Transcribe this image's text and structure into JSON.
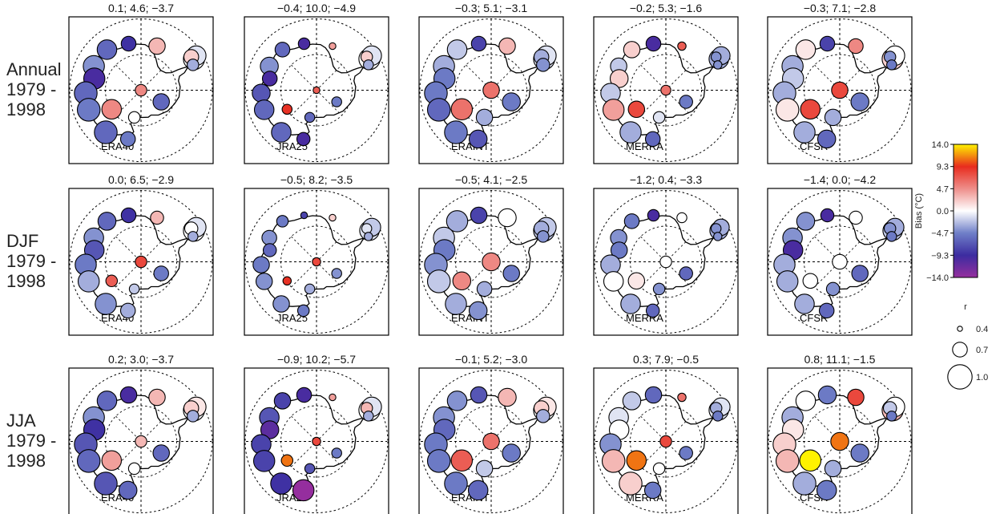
{
  "chart_data": {
    "type": "scatter",
    "description_type": "polar station map small multiples",
    "rows": [
      {
        "label_lines": [
          "Annual",
          "1979 -",
          "1998"
        ]
      },
      {
        "label_lines": [
          "DJF",
          "1979 -",
          "1998"
        ]
      },
      {
        "label_lines": [
          "JJA",
          "1979 -",
          "1998"
        ]
      }
    ],
    "models": [
      "ERA40",
      "JRA25",
      "ERAINT",
      "MERRA",
      "CFSR"
    ],
    "panel_titles": [
      [
        "0.1; 4.6; −3.7",
        "−0.4; 10.0; −4.9",
        "−0.3; 5.1; −3.1",
        "−0.2; 5.3; −1.6",
        "−0.3; 7.1; −2.8"
      ],
      [
        "0.0; 6.5; −2.9",
        "−0.5; 8.2; −3.5",
        "−0.5; 4.1; −2.5",
        "−1.2; 0.4; −3.3",
        "−1.4; 0.0; −4.2"
      ],
      [
        "0.2; 3.0; −3.7",
        "−0.9; 10.2; −5.7",
        "−0.1; 5.2; −3.0",
        "0.3; 7.9; −0.5",
        "0.8; 11.1; −1.5"
      ]
    ],
    "station_lat_lon": [
      [
        -64.0,
        -59.5
      ],
      [
        -62.5,
        -58.0
      ],
      [
        -64.5,
        -56.5
      ],
      [
        -65.5,
        -64.0
      ],
      [
        -70.0,
        -20.0
      ],
      [
        -69.5,
        15.0
      ],
      [
        -67.5,
        40.0
      ],
      [
        -67.5,
        63.0
      ],
      [
        -69.5,
        76.0
      ],
      [
        -66.5,
        93.0
      ],
      [
        -66.3,
        110.5
      ],
      [
        -66.7,
        140.0
      ],
      [
        -75.0,
        123.0
      ],
      [
        -90.0,
        0.0
      ],
      [
        -78.0,
        166.0
      ],
      [
        -80.0,
        -120.0
      ],
      [
        -68.5,
        165.0
      ]
    ],
    "bias_values": [
      [
        [
          0.0,
          -1.0,
          2.0,
          -3.0,
          3.0,
          -9.0,
          -6.0,
          -4.0,
          -10.0,
          -6.0,
          -5.0,
          -6.0,
          5.0,
          5.0,
          0.0,
          -6.0,
          -5.0
        ],
        [
          0.0,
          -1.0,
          2.0,
          -3.0,
          4.0,
          -10.0,
          -6.0,
          -4.0,
          -10.0,
          -7.0,
          -6.0,
          -6.0,
          9.0,
          7.0,
          -6.0,
          -5.0,
          -10.0
        ],
        [
          -1.0,
          -1.0,
          -3.0,
          -4.0,
          3.0,
          -8.0,
          -2.0,
          -3.0,
          -5.0,
          -5.0,
          -6.0,
          -5.0,
          6.0,
          6.0,
          -3.0,
          -5.0,
          -7.0
        ],
        [
          -3.0,
          -3.0,
          -4.0,
          -4.0,
          7.0,
          -10.0,
          2.0,
          -2.0,
          2.0,
          -2.0,
          4.0,
          -3.0,
          8.0,
          6.0,
          -1.0,
          -5.0,
          -6.0
        ],
        [
          2.0,
          0.0,
          -4.0,
          -5.0,
          5.0,
          -8.0,
          1.0,
          -3.0,
          -2.0,
          -3.0,
          1.0,
          -3.0,
          8.0,
          8.0,
          -3.0,
          -5.0,
          -6.0
        ]
      ],
      [
        [
          0.0,
          -1.0,
          0.0,
          -3.0,
          3.0,
          -9.0,
          -6.0,
          -4.0,
          -7.0,
          -5.0,
          -3.0,
          -4.0,
          7.0,
          8.0,
          -2.0,
          -5.0,
          -3.0
        ],
        [
          -1.0,
          -2.0,
          -1.0,
          -3.0,
          2.0,
          -8.0,
          -5.0,
          -4.0,
          -6.0,
          -5.0,
          -4.0,
          -4.0,
          9.0,
          8.0,
          -3.0,
          -4.0,
          -5.0
        ],
        [
          -2.0,
          -2.0,
          -3.0,
          -4.0,
          0.0,
          -8.0,
          -3.0,
          -2.0,
          -5.0,
          -4.0,
          -2.0,
          -3.0,
          5.0,
          5.0,
          -3.0,
          -5.0,
          -4.0
        ],
        [
          -3.0,
          -3.0,
          -4.0,
          -4.0,
          0.0,
          -10.0,
          -5.0,
          -4.0,
          -5.0,
          -3.0,
          0.0,
          -3.0,
          1.0,
          0.0,
          -4.0,
          -6.0,
          -6.0
        ],
        [
          -2.0,
          -3.0,
          -4.0,
          -5.0,
          0.0,
          -10.0,
          -4.0,
          -4.0,
          -10.0,
          -3.0,
          -3.0,
          -3.0,
          0.0,
          0.0,
          -4.0,
          -6.0,
          -6.0
        ]
      ],
      [
        [
          0.0,
          1.0,
          2.0,
          -3.0,
          3.0,
          -10.0,
          -6.0,
          -4.0,
          -9.0,
          -7.0,
          -6.0,
          -7.0,
          4.0,
          3.0,
          0.0,
          -6.0,
          -6.0
        ],
        [
          0.0,
          -1.0,
          3.0,
          -3.0,
          4.0,
          -10.0,
          -8.0,
          -7.0,
          -11.0,
          -8.0,
          -8.0,
          -9.0,
          11.0,
          8.0,
          -7.0,
          -5.0,
          -14.0
        ],
        [
          0.0,
          1.0,
          2.0,
          -3.0,
          3.0,
          -7.0,
          -4.0,
          -4.0,
          -6.0,
          -5.0,
          -5.0,
          -5.0,
          7.0,
          6.0,
          -2.0,
          -5.0,
          -6.0
        ],
        [
          -1.0,
          -1.0,
          -3.0,
          -5.0,
          6.0,
          -6.0,
          -2.0,
          -1.0,
          0.0,
          -4.0,
          3.0,
          2.0,
          11.0,
          8.0,
          0.0,
          -5.0,
          -5.0
        ],
        [
          3.0,
          0.0,
          -2.0,
          -5.0,
          8.0,
          -5.0,
          0.0,
          -3.0,
          1.0,
          2.0,
          3.0,
          -3.0,
          14.0,
          11.0,
          -3.0,
          -5.0,
          -5.0
        ]
      ]
    ],
    "correlation_values": [
      [
        [
          0.9,
          0.85,
          0.7,
          0.6,
          0.75,
          0.7,
          0.85,
          0.9,
          0.9,
          0.95,
          0.95,
          0.95,
          0.85,
          0.6,
          0.6,
          0.75,
          0.7
        ],
        [
          0.9,
          0.85,
          0.6,
          0.55,
          0.45,
          0.6,
          0.7,
          0.8,
          0.7,
          0.8,
          0.85,
          0.85,
          0.55,
          0.45,
          0.55,
          0.55,
          0.65
        ],
        [
          0.9,
          0.85,
          0.7,
          0.65,
          0.75,
          0.7,
          0.85,
          0.9,
          0.9,
          0.95,
          0.95,
          0.95,
          0.9,
          0.75,
          0.75,
          0.8,
          0.8
        ],
        [
          0.85,
          0.8,
          0.55,
          0.5,
          0.5,
          0.7,
          0.75,
          0.75,
          0.8,
          0.85,
          0.9,
          0.9,
          0.75,
          0.55,
          0.6,
          0.65,
          0.7
        ],
        [
          0.9,
          0.85,
          0.6,
          0.55,
          0.7,
          0.7,
          0.85,
          0.9,
          0.9,
          0.95,
          0.95,
          0.9,
          0.85,
          0.75,
          0.75,
          0.8,
          0.8
        ]
      ],
      [
        [
          0.9,
          0.85,
          0.65,
          0.55,
          0.65,
          0.7,
          0.8,
          0.85,
          0.85,
          0.9,
          0.9,
          0.9,
          0.6,
          0.6,
          0.55,
          0.7,
          0.7
        ],
        [
          0.85,
          0.8,
          0.55,
          0.5,
          0.45,
          0.45,
          0.6,
          0.7,
          0.65,
          0.75,
          0.75,
          0.75,
          0.5,
          0.5,
          0.55,
          0.55,
          0.6
        ],
        [
          0.9,
          0.85,
          0.7,
          0.6,
          0.8,
          0.75,
          0.9,
          0.9,
          0.9,
          0.95,
          0.95,
          0.9,
          0.8,
          0.8,
          0.7,
          0.75,
          0.8
        ],
        [
          0.8,
          0.75,
          0.55,
          0.5,
          0.55,
          0.6,
          0.7,
          0.75,
          0.75,
          0.85,
          0.85,
          0.85,
          0.75,
          0.6,
          0.6,
          0.65,
          0.65
        ],
        [
          0.85,
          0.8,
          0.6,
          0.55,
          0.65,
          0.65,
          0.8,
          0.85,
          0.85,
          0.9,
          0.9,
          0.85,
          0.7,
          0.7,
          0.65,
          0.75,
          0.7
        ]
      ],
      [
        [
          0.9,
          0.85,
          0.7,
          0.6,
          0.75,
          0.75,
          0.85,
          0.9,
          0.9,
          0.95,
          0.95,
          0.95,
          0.85,
          0.6,
          0.6,
          0.75,
          0.8
        ],
        [
          0.9,
          0.85,
          0.6,
          0.55,
          0.45,
          0.7,
          0.75,
          0.85,
          0.8,
          0.85,
          0.9,
          0.9,
          0.6,
          0.5,
          0.55,
          0.55,
          0.9
        ],
        [
          0.9,
          0.85,
          0.7,
          0.65,
          0.8,
          0.75,
          0.85,
          0.9,
          0.9,
          0.95,
          0.95,
          0.95,
          0.9,
          0.75,
          0.75,
          0.8,
          0.85
        ],
        [
          0.85,
          0.8,
          0.6,
          0.55,
          0.5,
          0.75,
          0.8,
          0.85,
          0.85,
          0.9,
          0.95,
          0.95,
          0.85,
          0.6,
          0.6,
          0.65,
          0.75
        ],
        [
          0.9,
          0.85,
          0.65,
          0.55,
          0.75,
          0.8,
          0.85,
          0.9,
          0.9,
          0.95,
          0.95,
          0.95,
          0.9,
          0.8,
          0.75,
          0.8,
          0.85
        ]
      ]
    ],
    "colorbar": {
      "label": "Bias (°C)",
      "ticks": [
        "14.0",
        "9.3",
        "4.7",
        "0.0",
        "−4.7",
        "−9.3",
        "−14.0"
      ],
      "range": [
        -14.0,
        14.0
      ]
    },
    "size_legend": {
      "title": "r",
      "entries": [
        {
          "value": 0.4,
          "label": "0.4"
        },
        {
          "value": 0.7,
          "label": "0.7"
        },
        {
          "value": 1.0,
          "label": "1.0"
        }
      ]
    }
  }
}
